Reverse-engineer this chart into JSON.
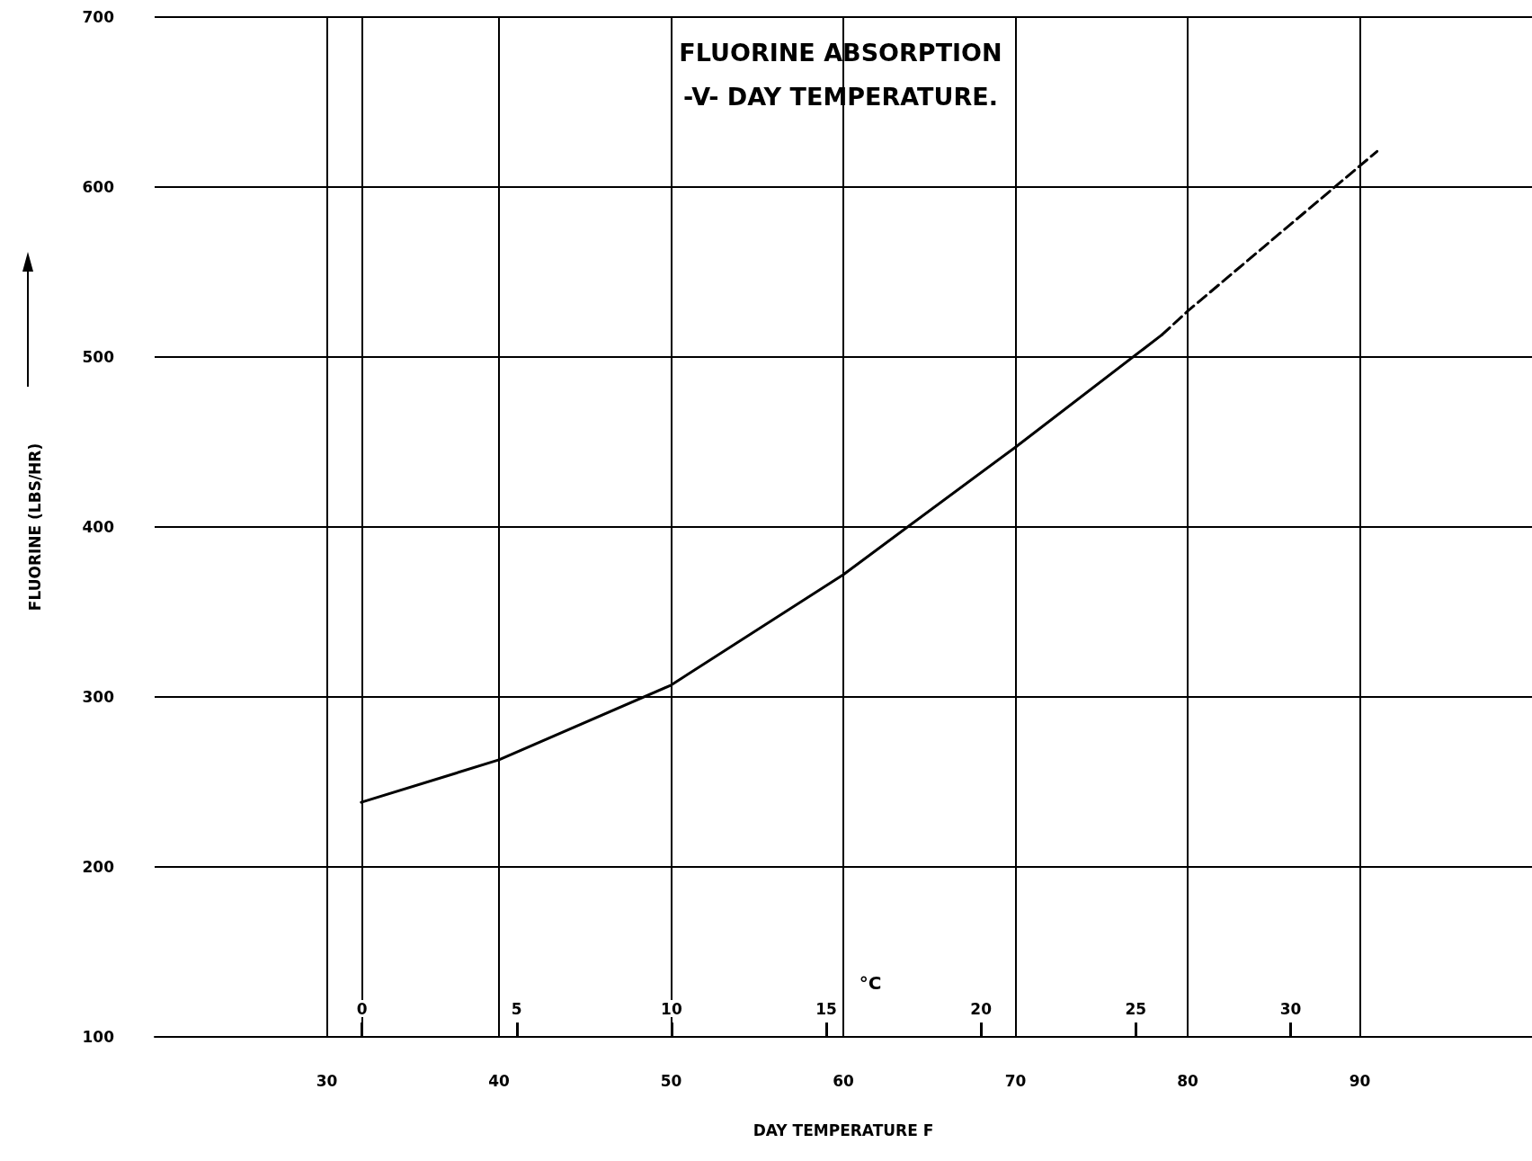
{
  "chart_data": {
    "type": "line",
    "title": "FLUORINE ABSORPTION",
    "subtitle": "-V- DAY TEMPERATURE.",
    "xlabel": "DAY TEMPERATURE F",
    "ylabel": "FLUORINE (LBS/HR)",
    "x2label": "°C",
    "series": [
      {
        "color": "#000000",
        "line_style": "solid",
        "x": [
          32,
          40,
          50,
          60,
          70,
          78.5
        ],
        "values": [
          238,
          263,
          307,
          372,
          447,
          513
        ]
      },
      {
        "color": "#000000",
        "line_style": "dashed",
        "x": [
          78.5,
          80,
          91
        ],
        "values": [
          513,
          527,
          621
        ]
      }
    ],
    "xlim": [
      20,
      100
    ],
    "xticks": [
      30,
      40,
      50,
      60,
      70,
      80,
      90
    ],
    "x2lim": [
      -6.7,
      37.8
    ],
    "x2ticks": [
      0,
      5,
      10,
      15,
      20,
      25,
      30
    ],
    "ylim": [
      100,
      700
    ],
    "yticks": [
      100,
      200,
      300,
      400,
      500,
      600,
      700
    ],
    "grid": true,
    "marker": "none"
  }
}
